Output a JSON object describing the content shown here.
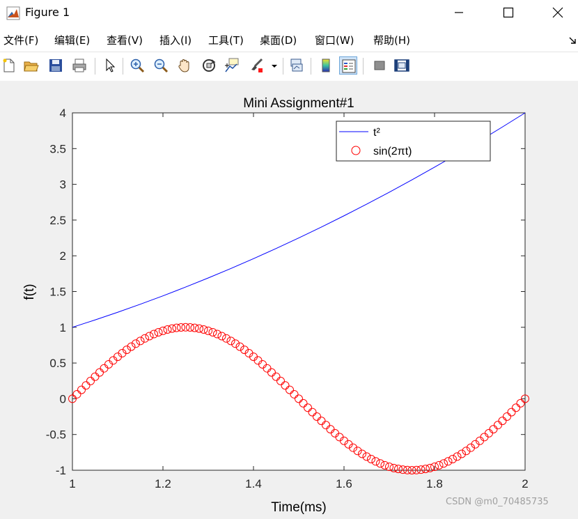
{
  "window": {
    "title": "Figure 1",
    "controls": [
      "minimize",
      "maximize",
      "close"
    ]
  },
  "menu": {
    "items": [
      "文件(F)",
      "编辑(E)",
      "查看(V)",
      "插入(I)",
      "工具(T)",
      "桌面(D)",
      "窗口(W)",
      "帮助(H)"
    ]
  },
  "toolbar": {
    "buttons": [
      {
        "name": "new-figure",
        "icon": "new-file-icon"
      },
      {
        "name": "open-file",
        "icon": "folder-open-icon"
      },
      {
        "name": "save-figure",
        "icon": "floppy-disk-icon"
      },
      {
        "name": "print-figure",
        "icon": "printer-icon"
      },
      {
        "name": "edit-plot",
        "icon": "pointer-arrow-icon"
      },
      {
        "name": "zoom-in",
        "icon": "zoom-in-icon"
      },
      {
        "name": "zoom-out",
        "icon": "zoom-out-icon"
      },
      {
        "name": "pan",
        "icon": "hand-pan-icon"
      },
      {
        "name": "rotate-3d",
        "icon": "rotate-3d-icon"
      },
      {
        "name": "data-cursor",
        "icon": "data-cursor-icon"
      },
      {
        "name": "brush",
        "icon": "brush-icon"
      },
      {
        "name": "link-plot",
        "icon": "link-plot-icon"
      },
      {
        "name": "insert-colorbar",
        "icon": "colorbar-icon"
      },
      {
        "name": "insert-legend",
        "icon": "legend-icon",
        "active": true
      },
      {
        "name": "hide-plot-tools",
        "icon": "hide-tools-icon"
      },
      {
        "name": "show-plot-tools",
        "icon": "show-tools-icon"
      }
    ]
  },
  "chart_data": {
    "type": "line",
    "title": "Mini Assignment#1",
    "xlabel": "Time(ms)",
    "ylabel": "f(t)",
    "xlim": [
      1,
      2
    ],
    "ylim": [
      -1,
      4
    ],
    "xticks": [
      1,
      1.2,
      1.4,
      1.6,
      1.8,
      2
    ],
    "yticks": [
      -1,
      -0.5,
      0,
      0.5,
      1,
      1.5,
      2,
      2.5,
      3,
      3.5,
      4
    ],
    "grid": false,
    "legend": {
      "position": "top-right"
    },
    "series": [
      {
        "name": "t²",
        "style": "line",
        "color": "#0000ff",
        "x": [
          1,
          1.05,
          1.1,
          1.15,
          1.2,
          1.25,
          1.3,
          1.35,
          1.4,
          1.45,
          1.5,
          1.55,
          1.6,
          1.65,
          1.7,
          1.75,
          1.8,
          1.85,
          1.9,
          1.95,
          2
        ],
        "y": [
          1,
          1.1025,
          1.21,
          1.3225,
          1.44,
          1.5625,
          1.69,
          1.8225,
          1.96,
          2.1025,
          2.25,
          2.4025,
          2.56,
          2.7225,
          2.89,
          3.0625,
          3.24,
          3.4225,
          3.61,
          3.8025,
          4
        ]
      },
      {
        "name": "sin(2πt)",
        "style": "circle-markers",
        "color": "#ff0000",
        "x": [
          1,
          1.01,
          1.02,
          1.03,
          1.04,
          1.05,
          1.06,
          1.07,
          1.08,
          1.09,
          1.1,
          1.11,
          1.12,
          1.13,
          1.14,
          1.15,
          1.16,
          1.17,
          1.18,
          1.19,
          1.2,
          1.21,
          1.22,
          1.23,
          1.24,
          1.25,
          1.26,
          1.27,
          1.28,
          1.29,
          1.3,
          1.31,
          1.32,
          1.33,
          1.34,
          1.35,
          1.36,
          1.37,
          1.38,
          1.39,
          1.4,
          1.41,
          1.42,
          1.43,
          1.44,
          1.45,
          1.46,
          1.47,
          1.48,
          1.49,
          1.5,
          1.51,
          1.52,
          1.53,
          1.54,
          1.55,
          1.56,
          1.57,
          1.58,
          1.59,
          1.6,
          1.61,
          1.62,
          1.63,
          1.64,
          1.65,
          1.66,
          1.67,
          1.68,
          1.69,
          1.7,
          1.71,
          1.72,
          1.73,
          1.74,
          1.75,
          1.76,
          1.77,
          1.78,
          1.79,
          1.8,
          1.81,
          1.82,
          1.83,
          1.84,
          1.85,
          1.86,
          1.87,
          1.88,
          1.89,
          1.9,
          1.91,
          1.92,
          1.93,
          1.94,
          1.95,
          1.96,
          1.97,
          1.98,
          1.99,
          2
        ],
        "y": [
          0,
          0.063,
          0.125,
          0.187,
          0.249,
          0.309,
          0.368,
          0.426,
          0.482,
          0.536,
          0.588,
          0.637,
          0.685,
          0.729,
          0.771,
          0.809,
          0.844,
          0.876,
          0.905,
          0.93,
          0.951,
          0.969,
          0.982,
          0.992,
          0.998,
          1,
          0.998,
          0.992,
          0.982,
          0.969,
          0.951,
          0.93,
          0.905,
          0.876,
          0.844,
          0.809,
          0.771,
          0.729,
          0.685,
          0.637,
          0.588,
          0.536,
          0.482,
          0.426,
          0.368,
          0.309,
          0.249,
          0.187,
          0.125,
          0.063,
          0,
          -0.063,
          -0.125,
          -0.187,
          -0.249,
          -0.309,
          -0.368,
          -0.426,
          -0.482,
          -0.536,
          -0.588,
          -0.637,
          -0.685,
          -0.729,
          -0.771,
          -0.809,
          -0.844,
          -0.876,
          -0.905,
          -0.93,
          -0.951,
          -0.969,
          -0.982,
          -0.992,
          -0.998,
          -1,
          -0.998,
          -0.992,
          -0.982,
          -0.969,
          -0.951,
          -0.93,
          -0.905,
          -0.876,
          -0.844,
          -0.809,
          -0.771,
          -0.729,
          -0.685,
          -0.637,
          -0.588,
          -0.536,
          -0.482,
          -0.426,
          -0.368,
          -0.309,
          -0.249,
          -0.187,
          -0.125,
          -0.063,
          0
        ]
      }
    ]
  },
  "watermark": "CSDN @m0_70485735"
}
